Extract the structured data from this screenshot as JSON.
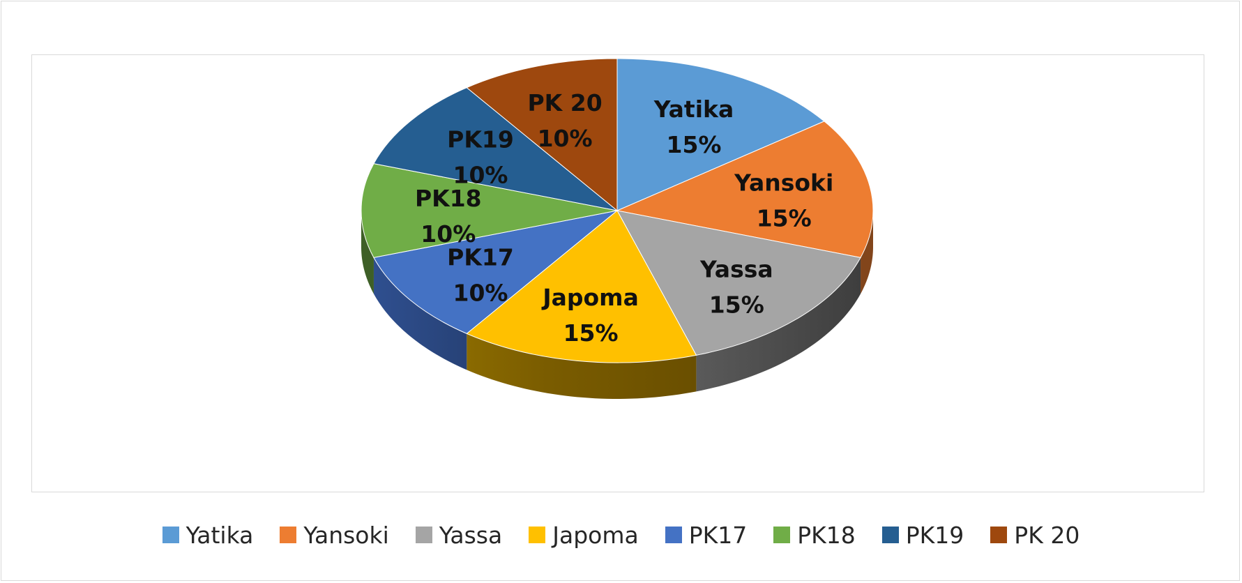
{
  "chart_data": {
    "type": "pie",
    "style": "3d",
    "categories": [
      "Yatika",
      "Yansoki",
      "Yassa",
      "Japoma",
      "PK17",
      "PK18",
      "PK19",
      "PK 20"
    ],
    "values": [
      15,
      15,
      15,
      15,
      10,
      10,
      10,
      10
    ],
    "percent_labels": [
      "15%",
      "15%",
      "15%",
      "15%",
      "10%",
      "10%",
      "10%",
      "10%"
    ],
    "colors": [
      "#5b9bd5",
      "#ed7d31",
      "#a5a5a5",
      "#ffc000",
      "#4472c4",
      "#70ad47",
      "#255e91",
      "#9e480e"
    ],
    "legend_position": "bottom",
    "title": ""
  },
  "legend": {
    "items": [
      "Yatika",
      "Yansoki",
      "Yassa",
      "Japoma",
      "PK17",
      "PK18",
      "PK19",
      "PK 20"
    ]
  }
}
